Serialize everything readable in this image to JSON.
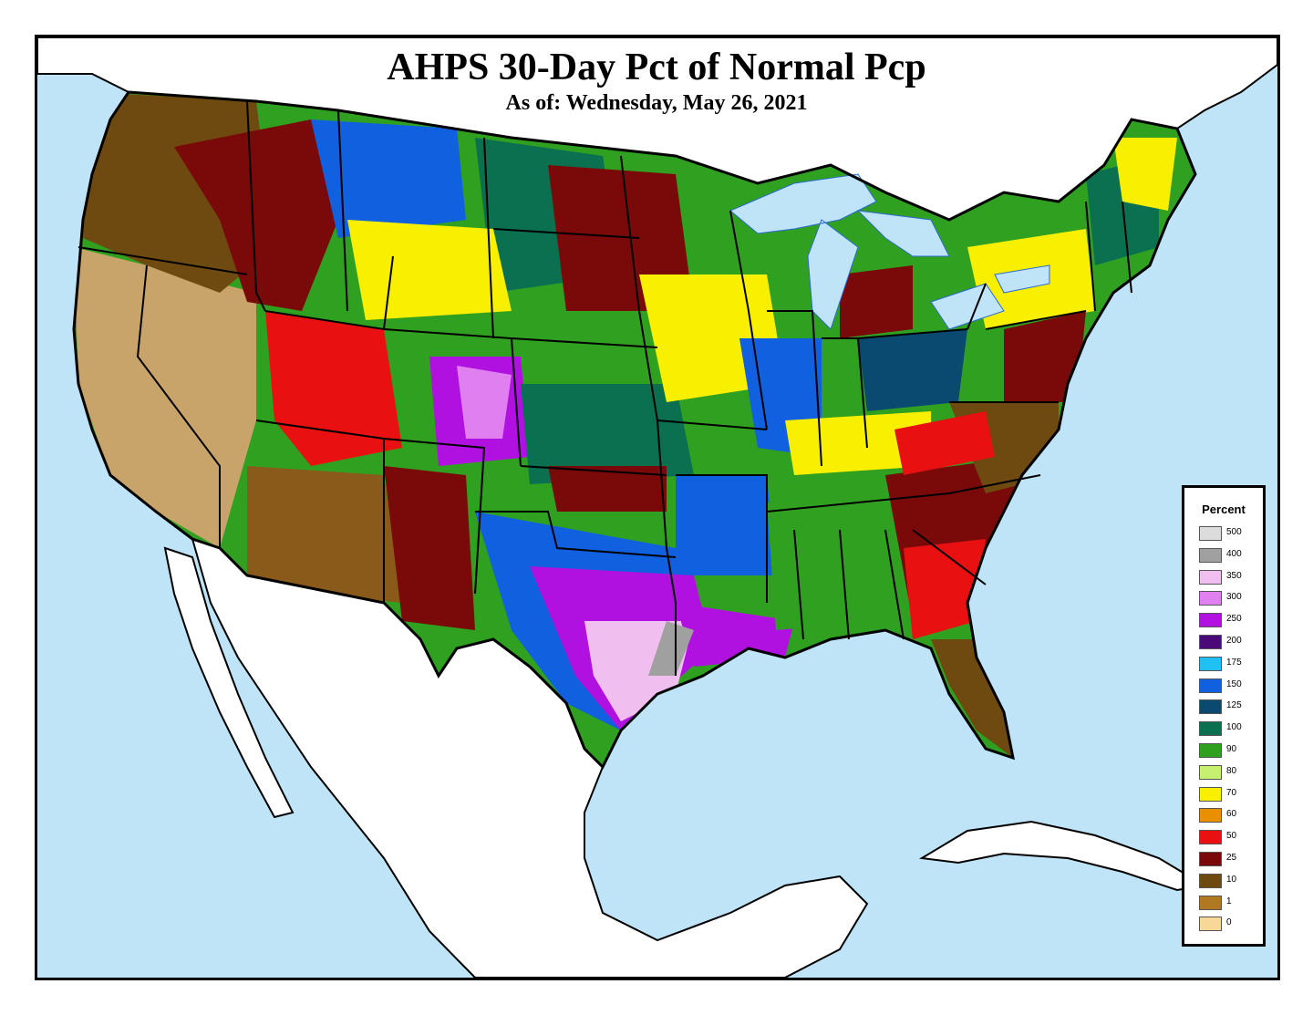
{
  "title": "AHPS 30-Day Pct of Normal Pcp",
  "subtitle": "As of: Wednesday, May 26, 2021",
  "legend": {
    "title": "Percent",
    "items": [
      {
        "label": "500",
        "color": "#dcdcdc"
      },
      {
        "label": "400",
        "color": "#a0a0a0"
      },
      {
        "label": "350",
        "color": "#f0bff0"
      },
      {
        "label": "300",
        "color": "#e080f0"
      },
      {
        "label": "250",
        "color": "#b010e0"
      },
      {
        "label": "200",
        "color": "#4b0a7a"
      },
      {
        "label": "175",
        "color": "#20c0f0"
      },
      {
        "label": "150",
        "color": "#1060e0"
      },
      {
        "label": "125",
        "color": "#0a4a70"
      },
      {
        "label": "100",
        "color": "#0a7050"
      },
      {
        "label": "90",
        "color": "#30a020"
      },
      {
        "label": "80",
        "color": "#c8f070"
      },
      {
        "label": "70",
        "color": "#f8f000"
      },
      {
        "label": "60",
        "color": "#e89000"
      },
      {
        "label": "50",
        "color": "#e81010"
      },
      {
        "label": "25",
        "color": "#7a0a0a"
      },
      {
        "label": "10",
        "color": "#6e4a10"
      },
      {
        "label": "1",
        "color": "#b07820"
      },
      {
        "label": "0",
        "color": "#f8d898"
      }
    ]
  },
  "colors": {
    "ocean": "#bfe3f7",
    "land_outside": "#ffffff",
    "borders": "#000000"
  }
}
